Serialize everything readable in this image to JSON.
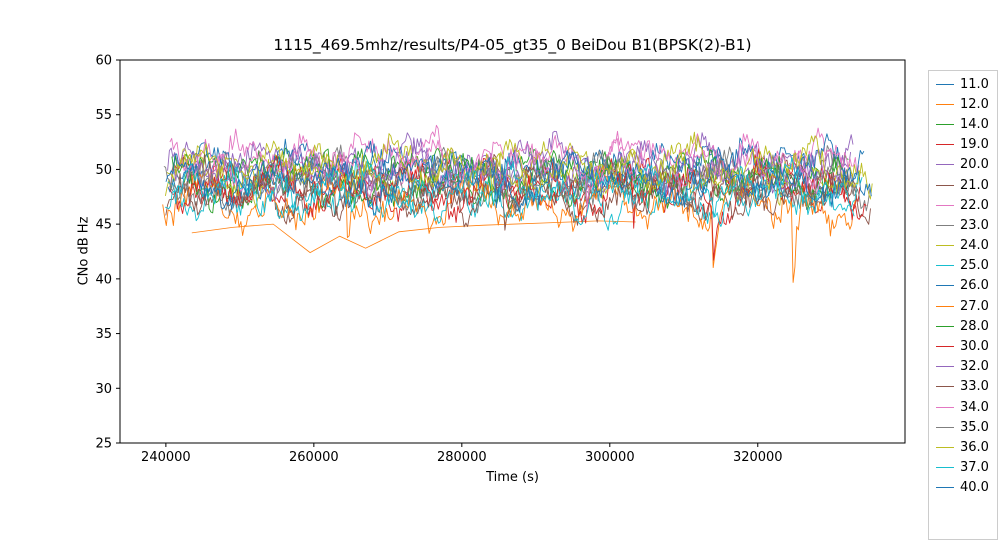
{
  "chart_data": {
    "type": "line",
    "title": "1115_469.5mhz/results/P4-05_gt35_0 BeiDou B1(BPSK(2)-B1)",
    "xlabel": "Time (s)",
    "ylabel": "CNo dB Hz",
    "xlim": [
      233800,
      339900
    ],
    "ylim": [
      25,
      60
    ],
    "xticks": [
      240000,
      260000,
      280000,
      300000,
      320000
    ],
    "yticks": [
      25,
      30,
      35,
      40,
      45,
      50,
      55,
      60
    ],
    "grid": false,
    "legend_position": "right-outside",
    "x_range": [
      239400,
      335700
    ],
    "axis_color": "#000000",
    "legend_edge_color": "#cccccc",
    "series": [
      {
        "name": "11.0",
        "color": "#1f77b4",
        "kind": "noisy",
        "mean": 49.6,
        "seed": 11,
        "slow": [
          1.3,
          0.8,
          0.5
        ],
        "jitter": 0.9,
        "spike_prob": 0.003,
        "spike_depth": 3.0
      },
      {
        "name": "12.0",
        "color": "#ff7f0e",
        "kind": "sparse",
        "points": [
          [
            243500,
            44.2
          ],
          [
            249000,
            44.7
          ],
          [
            254500,
            45.0
          ],
          [
            259500,
            42.4
          ],
          [
            263500,
            43.9
          ],
          [
            267000,
            42.8
          ],
          [
            271500,
            44.3
          ],
          [
            277000,
            44.7
          ],
          [
            283000,
            44.9
          ],
          [
            291000,
            45.1
          ],
          [
            298500,
            45.3
          ],
          [
            303500,
            45.2
          ]
        ]
      },
      {
        "name": "14.0",
        "color": "#2ca02c",
        "kind": "noisy",
        "mean": 49.2,
        "seed": 14,
        "slow": [
          1.2,
          0.9,
          0.5
        ],
        "jitter": 0.9,
        "spike_prob": 0.003,
        "spike_depth": 3.0
      },
      {
        "name": "19.0",
        "color": "#d62728",
        "kind": "noisy",
        "mean": 48.6,
        "seed": 19,
        "slow": [
          1.4,
          0.8,
          0.5
        ],
        "jitter": 0.9,
        "spike_prob": 0.004,
        "spike_depth": 4.0
      },
      {
        "name": "20.0",
        "color": "#9467bd",
        "kind": "noisy",
        "mean": 50.4,
        "seed": 20,
        "slow": [
          1.2,
          0.7,
          0.5
        ],
        "jitter": 0.85,
        "spike_prob": 0.003,
        "spike_depth": 3.0
      },
      {
        "name": "21.0",
        "color": "#8c564b",
        "kind": "noisy",
        "mean": 48.0,
        "seed": 21,
        "slow": [
          1.3,
          0.8,
          0.5
        ],
        "jitter": 0.9,
        "spike_prob": 0.003,
        "spike_depth": 3.5
      },
      {
        "name": "22.0",
        "color": "#e377c2",
        "kind": "noisy",
        "mean": 51.0,
        "seed": 22,
        "slow": [
          1.2,
          0.7,
          0.5
        ],
        "jitter": 0.85,
        "spike_prob": 0.003,
        "spike_depth": 3.0
      },
      {
        "name": "23.0",
        "color": "#7f7f7f",
        "kind": "noisy",
        "mean": 49.0,
        "seed": 23,
        "slow": [
          1.3,
          0.8,
          0.5
        ],
        "jitter": 0.9,
        "spike_prob": 0.003,
        "spike_depth": 3.0
      },
      {
        "name": "24.0",
        "color": "#bcbd22",
        "kind": "noisy",
        "mean": 49.8,
        "seed": 24,
        "slow": [
          1.2,
          0.8,
          0.5
        ],
        "jitter": 0.9,
        "spike_prob": 0.003,
        "spike_depth": 3.0
      },
      {
        "name": "25.0",
        "color": "#17becf",
        "kind": "noisy",
        "mean": 47.6,
        "seed": 25,
        "slow": [
          1.3,
          0.8,
          0.5
        ],
        "jitter": 0.9,
        "spike_prob": 0.003,
        "spike_depth": 3.0
      },
      {
        "name": "26.0",
        "color": "#1f77b4",
        "kind": "noisy",
        "mean": 50.1,
        "seed": 26,
        "slow": [
          1.2,
          0.8,
          0.5
        ],
        "jitter": 0.9,
        "spike_prob": 0.003,
        "spike_depth": 3.0
      },
      {
        "name": "27.0",
        "color": "#ff7f0e",
        "kind": "noisy",
        "mean": 46.8,
        "seed": 27,
        "slow": [
          1.4,
          0.9,
          0.5
        ],
        "jitter": 1.0,
        "spike_prob": 0.006,
        "spike_depth": 8.0
      },
      {
        "name": "28.0",
        "color": "#2ca02c",
        "kind": "noisy",
        "mean": 49.4,
        "seed": 28,
        "slow": [
          1.3,
          0.8,
          0.5
        ],
        "jitter": 0.9,
        "spike_prob": 0.003,
        "spike_depth": 3.0
      },
      {
        "name": "30.0",
        "color": "#d62728",
        "kind": "noisy",
        "mean": 48.2,
        "seed": 30,
        "slow": [
          1.3,
          0.9,
          0.5
        ],
        "jitter": 0.9,
        "spike_prob": 0.005,
        "spike_depth": 6.0
      },
      {
        "name": "32.0",
        "color": "#9467bd",
        "kind": "noisy",
        "mean": 50.0,
        "seed": 32,
        "slow": [
          1.2,
          0.8,
          0.5
        ],
        "jitter": 0.9,
        "spike_prob": 0.003,
        "spike_depth": 3.0
      },
      {
        "name": "33.0",
        "color": "#8c564b",
        "kind": "noisy",
        "mean": 47.8,
        "seed": 33,
        "slow": [
          1.3,
          0.8,
          0.5
        ],
        "jitter": 0.9,
        "spike_prob": 0.004,
        "spike_depth": 4.0
      },
      {
        "name": "34.0",
        "color": "#e377c2",
        "kind": "noisy",
        "mean": 50.6,
        "seed": 34,
        "slow": [
          1.2,
          0.7,
          0.5
        ],
        "jitter": 0.85,
        "spike_prob": 0.003,
        "spike_depth": 3.0
      },
      {
        "name": "35.0",
        "color": "#7f7f7f",
        "kind": "noisy",
        "mean": 48.8,
        "seed": 35,
        "slow": [
          1.3,
          0.8,
          0.5
        ],
        "jitter": 0.9,
        "spike_prob": 0.003,
        "spike_depth": 3.0
      },
      {
        "name": "36.0",
        "color": "#bcbd22",
        "kind": "noisy",
        "mean": 50.2,
        "seed": 36,
        "slow": [
          1.2,
          0.8,
          0.5
        ],
        "jitter": 0.9,
        "spike_prob": 0.003,
        "spike_depth": 3.0
      },
      {
        "name": "37.0",
        "color": "#17becf",
        "kind": "noisy",
        "mean": 48.0,
        "seed": 37,
        "slow": [
          1.3,
          0.8,
          0.5
        ],
        "jitter": 0.9,
        "spike_prob": 0.003,
        "spike_depth": 3.0
      },
      {
        "name": "40.0",
        "color": "#1f77b4",
        "kind": "noisy",
        "mean": 49.0,
        "seed": 40,
        "slow": [
          1.2,
          0.8,
          0.5
        ],
        "jitter": 0.9,
        "spike_prob": 0.003,
        "spike_depth": 3.0
      }
    ]
  }
}
